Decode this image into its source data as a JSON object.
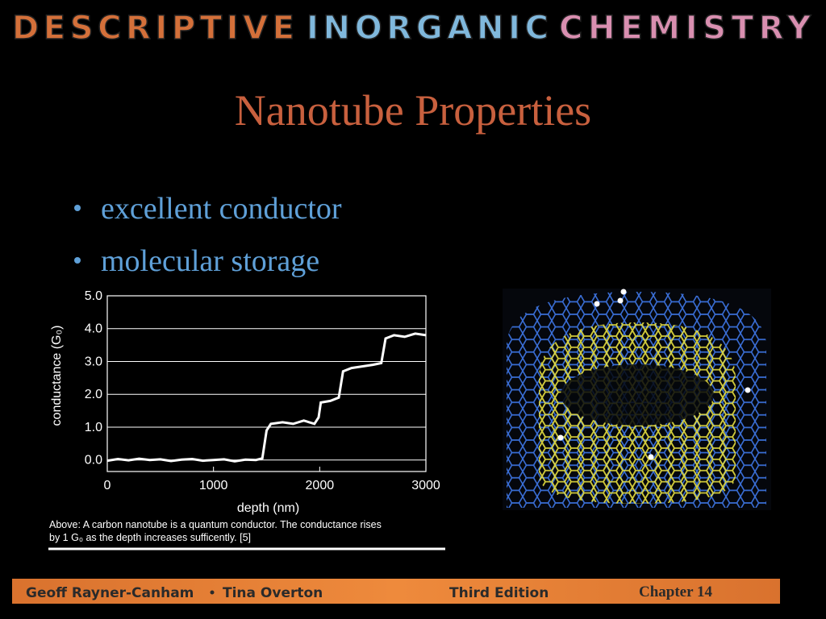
{
  "header": {
    "words": [
      "DESCRIPTIVE",
      "INORGANIC",
      "CHEMISTRY"
    ]
  },
  "title": "Nanotube Properties",
  "bullets": [
    "excellent conductor",
    "molecular storage"
  ],
  "chart_data": {
    "type": "line",
    "x_label": "depth (nm)",
    "y_label": "conductance (G₀)",
    "x": [
      0,
      100,
      200,
      300,
      400,
      500,
      600,
      700,
      800,
      900,
      1000,
      1100,
      1200,
      1300,
      1400,
      1460,
      1500,
      1540,
      1650,
      1750,
      1850,
      1950,
      1990,
      2010,
      2100,
      2180,
      2220,
      2300,
      2400,
      2500,
      2580,
      2620,
      2700,
      2800,
      2900,
      3000
    ],
    "series": [
      {
        "color": "#ffffff",
        "values": [
          -0.02,
          0.03,
          -0.01,
          0.04,
          0.0,
          0.02,
          -0.03,
          0.01,
          0.03,
          -0.02,
          0.0,
          0.02,
          -0.04,
          0.01,
          0.0,
          0.05,
          0.9,
          1.1,
          1.15,
          1.1,
          1.2,
          1.1,
          1.3,
          1.75,
          1.8,
          1.9,
          2.7,
          2.8,
          2.85,
          2.9,
          2.95,
          3.7,
          3.8,
          3.75,
          3.85,
          3.8
        ]
      }
    ],
    "xlim": [
      0,
      3000
    ],
    "xticks": [
      0,
      1000,
      2000,
      3000
    ],
    "ylim": [
      -0.35,
      5.0
    ],
    "yticks": [
      {
        "value": 0,
        "label": "0.0"
      },
      {
        "value": 1,
        "label": "1.0"
      },
      {
        "value": 2,
        "label": "2.0"
      },
      {
        "value": 3,
        "label": "3.0"
      },
      {
        "value": 4,
        "label": "4.0"
      },
      {
        "value": 5,
        "label": "5.0"
      }
    ],
    "grid": true,
    "caption": [
      "Above:  A carbon nanotube is a quantum conductor.  The conductance rises",
      "by 1 G₀ as the depth increases sufficently. [5]"
    ]
  },
  "footer": {
    "authors": [
      "Geoff Rayner-Canham",
      "Tina Overton"
    ],
    "edition": "Third Edition",
    "chapter": "Chapter 14"
  }
}
